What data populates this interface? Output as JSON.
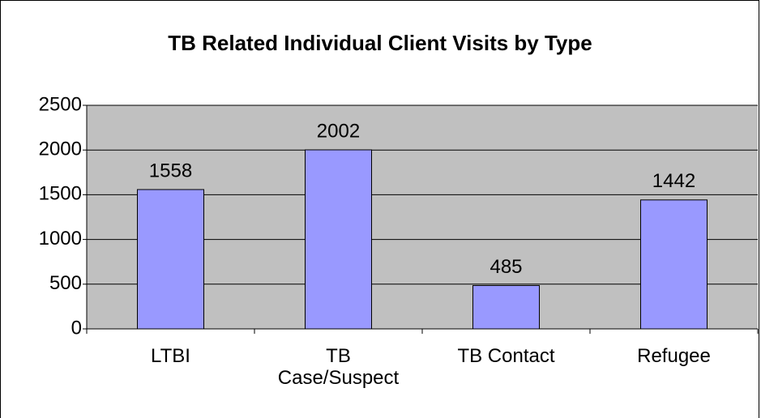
{
  "chart_data": {
    "type": "bar",
    "title": "TB Related Individual Client Visits by Type",
    "categories": [
      "LTBI",
      "TB Case/Suspect",
      "TB Contact",
      "Refugee"
    ],
    "values": [
      1558,
      2002,
      485,
      1442
    ],
    "color": "#9999ff",
    "ylim": [
      0,
      2500
    ],
    "yticks": [
      0,
      500,
      1000,
      1500,
      2000,
      2500
    ],
    "grid": true
  }
}
